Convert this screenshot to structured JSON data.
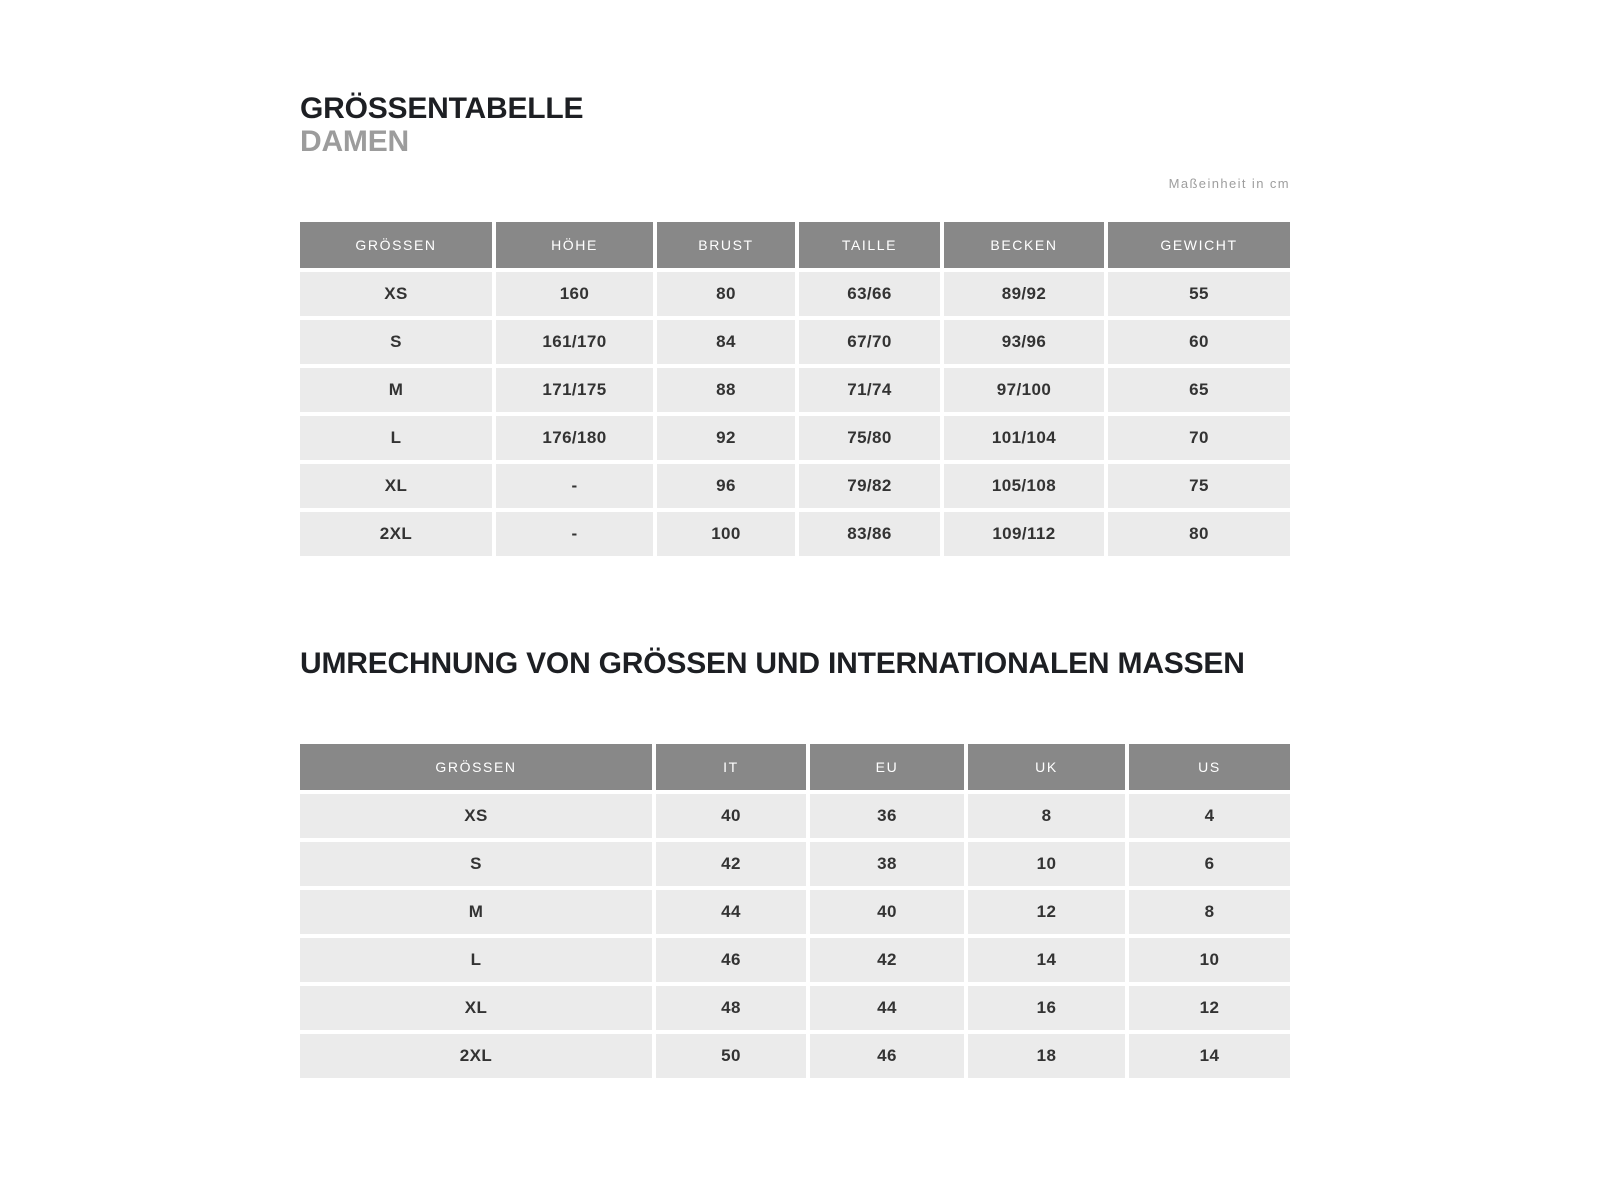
{
  "header": {
    "title": "GRÖSSENTABELLE",
    "subtitle": "DAMEN",
    "unit_note": "Maßeinheit in cm"
  },
  "size_table": {
    "columns": [
      "GRÖSSEN",
      "HÖHE",
      "BRUST",
      "TAILLE",
      "BECKEN",
      "GEWICHT"
    ],
    "rows": [
      [
        "XS",
        "160",
        "80",
        "63/66",
        "89/92",
        "55"
      ],
      [
        "S",
        "161/170",
        "84",
        "67/70",
        "93/96",
        "60"
      ],
      [
        "M",
        "171/175",
        "88",
        "71/74",
        "97/100",
        "65"
      ],
      [
        "L",
        "176/180",
        "92",
        "75/80",
        "101/104",
        "70"
      ],
      [
        "XL",
        "-",
        "96",
        "79/82",
        "105/108",
        "75"
      ],
      [
        "2XL",
        "-",
        "100",
        "83/86",
        "109/112",
        "80"
      ]
    ]
  },
  "conversion": {
    "title": "UMRECHNUNG VON GRÖSSEN UND INTERNATIONALEN MASSEN",
    "table": {
      "columns": [
        "GRÖSSEN",
        "IT",
        "EU",
        "UK",
        "US"
      ],
      "rows": [
        [
          "XS",
          "40",
          "36",
          "8",
          "4"
        ],
        [
          "S",
          "42",
          "38",
          "10",
          "6"
        ],
        [
          "M",
          "44",
          "40",
          "12",
          "8"
        ],
        [
          "L",
          "46",
          "42",
          "14",
          "10"
        ],
        [
          "XL",
          "48",
          "44",
          "16",
          "12"
        ],
        [
          "2XL",
          "50",
          "46",
          "18",
          "14"
        ]
      ]
    }
  },
  "colors": {
    "header_bg": "#888888",
    "row_bg": "#ebebeb",
    "header_text": "#ffffff",
    "cell_text": "#333333",
    "title_text": "#1d1f23",
    "muted_text": "#9c9c9c",
    "page_bg": "#ffffff"
  }
}
